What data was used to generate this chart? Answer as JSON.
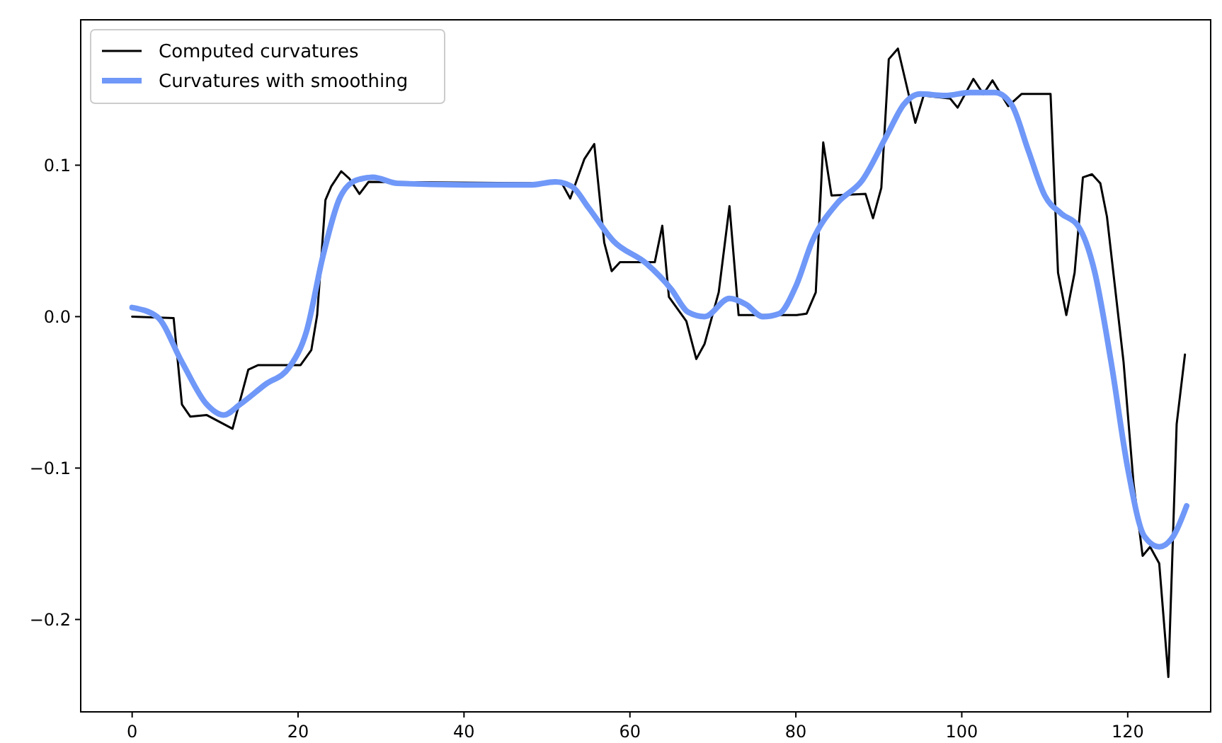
{
  "chart_data": {
    "type": "line",
    "xlim": [
      -6.2,
      130
    ],
    "xticks": [
      0,
      20,
      40,
      60,
      80,
      100,
      120
    ],
    "ylim": [
      -0.261,
      0.196
    ],
    "yticks": [
      {
        "value": -0.2,
        "label": "−0.2"
      },
      {
        "value": -0.1,
        "label": "−0.1"
      },
      {
        "value": 0,
        "label": "0.0"
      },
      {
        "value": 0.1,
        "label": "0.1"
      }
    ],
    "grid": false,
    "legend": "top left",
    "series": [
      {
        "name": "Computed curvatures",
        "color": "#000000",
        "line_style": "solid",
        "x": [
          0,
          5,
          6,
          7,
          9,
          12.1,
          14,
          15.2,
          20.3,
          21.6,
          22.3,
          23.3,
          24,
          25.2,
          26.2,
          27.4,
          28.5,
          40,
          50,
          51.8,
          52.8,
          54.5,
          55.7,
          56.9,
          57.8,
          58.8,
          63,
          63.9,
          64.7,
          66.8,
          68,
          69,
          70.7,
          72,
          73.1,
          80.1,
          81.3,
          82.4,
          83.3,
          84.3,
          88.4,
          89.3,
          90.3,
          91.2,
          92.3,
          94.4,
          95.4,
          98.6,
          99.5,
          101.4,
          102.6,
          103.7,
          105.6,
          107.2,
          110.7,
          111.6,
          112.6,
          113.6,
          114.6,
          115.7,
          116.7,
          117.5,
          119.5,
          120.7,
          121.8,
          122.7,
          123.8,
          124.9,
          125.9,
          126.9
        ],
        "values": [
          0,
          -0.001,
          -0.058,
          -0.066,
          -0.065,
          -0.074,
          -0.035,
          -0.032,
          -0.032,
          -0.022,
          0.001,
          0.077,
          0.086,
          0.096,
          0.091,
          0.081,
          0.089,
          null,
          null,
          0.088,
          0.078,
          0.104,
          0.114,
          0.049,
          0.03,
          0.036,
          0.036,
          0.06,
          0.013,
          -0.003,
          -0.028,
          -0.018,
          0.016,
          0.073,
          0.001,
          0.001,
          0.002,
          0.016,
          0.115,
          0.08,
          0.081,
          0.065,
          0.085,
          0.17,
          0.177,
          0.128,
          0.146,
          0.144,
          0.138,
          0.157,
          0.147,
          0.156,
          0.139,
          0.147,
          0.147,
          0.029,
          0.001,
          0.029,
          0.092,
          0.094,
          0.088,
          0.066,
          -0.03,
          -0.11,
          -0.158,
          -0.152,
          -0.163,
          -0.238,
          -0.071,
          -0.025
        ]
      },
      {
        "name": "Curvatures with smoothing",
        "color": "#7098f8",
        "line_style": "solid",
        "x": [
          0,
          3,
          6,
          9,
          11,
          13,
          16,
          19,
          21,
          23,
          25,
          27,
          29,
          32,
          40,
          48,
          51,
          53,
          55,
          58,
          62,
          65,
          67,
          69,
          72,
          74,
          76,
          78,
          80,
          82,
          85,
          88,
          91,
          93,
          95,
          98,
          101,
          104,
          106,
          108,
          110,
          112,
          114,
          116,
          118,
          120,
          122,
          123.8,
          125.5,
          127.1
        ],
        "values": [
          0.006,
          0.0,
          -0.03,
          -0.058,
          -0.065,
          -0.058,
          -0.045,
          -0.033,
          -0.01,
          0.04,
          0.078,
          0.09,
          0.092,
          0.088,
          0.087,
          0.087,
          0.089,
          0.086,
          0.072,
          0.05,
          0.035,
          0.018,
          0.003,
          0.0,
          0.012,
          0.008,
          0.0,
          0.002,
          0.02,
          0.05,
          0.075,
          0.09,
          0.12,
          0.14,
          0.147,
          0.146,
          0.148,
          0.148,
          0.14,
          0.11,
          0.08,
          0.068,
          0.06,
          0.03,
          -0.03,
          -0.1,
          -0.145,
          -0.152,
          -0.145,
          -0.125
        ]
      }
    ]
  }
}
